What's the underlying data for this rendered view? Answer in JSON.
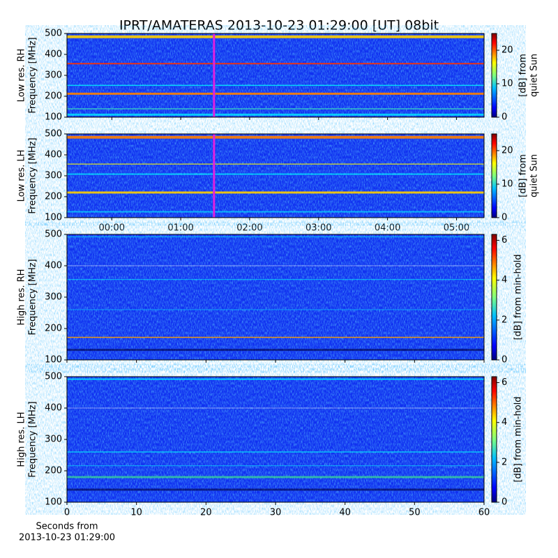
{
  "title": "IPRT/AMATERAS 2013-10-23 01:29:00 [UT]   08bit",
  "chart_data": [
    {
      "type": "heatmap",
      "ylabel": [
        "Low res. RH",
        "Frequency [MHz]"
      ],
      "ylim": [
        100,
        500
      ],
      "yticks": [
        100,
        200,
        300,
        400,
        500
      ],
      "xlim": [
        -0.65,
        5.4
      ],
      "xticks": [
        0,
        1,
        2,
        3,
        4,
        5
      ],
      "marker_x": 1.483,
      "marker_color": "#e020e0",
      "colorbar": {
        "label": [
          "[dB] from",
          "quiet Sun"
        ],
        "lim": [
          0,
          25
        ],
        "ticks": [
          0,
          10,
          20
        ]
      }
    },
    {
      "type": "heatmap",
      "ylabel": [
        "Low res. LH",
        "Frequency [MHz]"
      ],
      "ylim": [
        100,
        500
      ],
      "yticks": [
        100,
        200,
        300,
        400,
        500
      ],
      "xlim": [
        -0.65,
        5.4
      ],
      "xticks": [
        {
          "value": 0,
          "label": "00:00"
        },
        {
          "value": 1,
          "label": "01:00"
        },
        {
          "value": 2,
          "label": "02:00"
        },
        {
          "value": 3,
          "label": "03:00"
        },
        {
          "value": 4,
          "label": "04:00"
        },
        {
          "value": 5,
          "label": "05:00"
        }
      ],
      "marker_x": 1.483,
      "marker_color": "#e020e0",
      "colorbar": {
        "label": [
          "[dB] from",
          "quiet Sun"
        ],
        "lim": [
          0,
          25
        ],
        "ticks": [
          0,
          10,
          20
        ]
      }
    },
    {
      "type": "heatmap",
      "ylabel": [
        "High res. RH",
        "Frequency [MHz]"
      ],
      "ylim": [
        100,
        500
      ],
      "yticks": [
        100,
        200,
        300,
        400,
        500
      ],
      "xlim": [
        0,
        60
      ],
      "xticks": [
        0,
        10,
        20,
        30,
        40,
        50,
        60
      ],
      "colorbar": {
        "label": [
          "[dB] from min-hold"
        ],
        "lim": [
          0,
          6.3
        ],
        "ticks": [
          0,
          2,
          4,
          6
        ]
      }
    },
    {
      "type": "heatmap",
      "ylabel": [
        "High res. LH",
        "Frequency [MHz]"
      ],
      "ylim": [
        100,
        500
      ],
      "yticks": [
        100,
        200,
        300,
        400,
        500
      ],
      "xlim": [
        0,
        60
      ],
      "xticks": [
        0,
        10,
        20,
        30,
        40,
        50,
        60
      ],
      "xlabel": [
        "Seconds from",
        "2013-10-23 01:29:00"
      ],
      "colorbar": {
        "label": [
          "[dB] from min-hold"
        ],
        "lim": [
          0,
          6.3
        ],
        "ticks": [
          0,
          2,
          4,
          6
        ]
      }
    }
  ]
}
